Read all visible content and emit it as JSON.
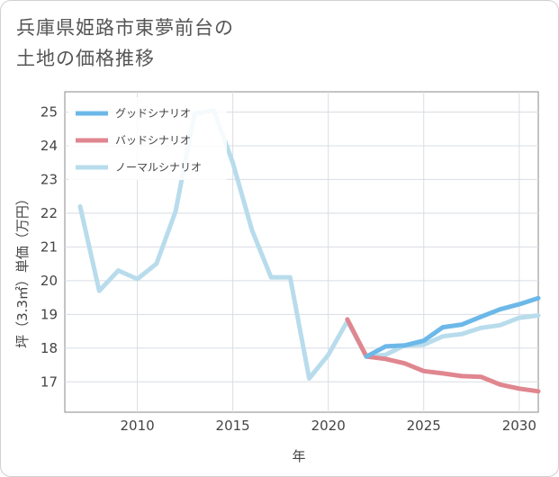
{
  "title_lines": [
    "兵庫県姫路市東夢前台の",
    "土地の価格推移"
  ],
  "chart_data": {
    "type": "line",
    "title": "兵庫県姫路市東夢前台の土地の価格推移",
    "xlabel": "年",
    "ylabel": "坪（3.3㎡）単価（万円）",
    "xlim": [
      2006.2,
      2031.0
    ],
    "ylim": [
      16.1,
      25.6
    ],
    "xticks": [
      2010,
      2015,
      2020,
      2025,
      2030
    ],
    "yticks": [
      17,
      18,
      19,
      20,
      21,
      22,
      23,
      24,
      25
    ],
    "legend_position": "top-left",
    "series": [
      {
        "name": "グッドシナリオ",
        "color": "#6cb8e8",
        "x": [
          2022,
          2023,
          2024,
          2025,
          2026,
          2027,
          2028,
          2029,
          2030,
          2031
        ],
        "y": [
          17.75,
          18.05,
          18.08,
          18.22,
          18.62,
          18.7,
          18.93,
          19.15,
          19.3,
          19.48
        ]
      },
      {
        "name": "バッドシナリオ",
        "color": "#e0868f",
        "x": [
          2021,
          2022,
          2023,
          2024,
          2025,
          2026,
          2027,
          2028,
          2029,
          2030,
          2031
        ],
        "y": [
          18.85,
          17.75,
          17.68,
          17.55,
          17.32,
          17.25,
          17.17,
          17.15,
          16.92,
          16.8,
          16.72
        ]
      },
      {
        "name": "ノーマルシナリオ",
        "color": "#b8dcec",
        "x": [
          2007,
          2008,
          2009,
          2010,
          2011,
          2012,
          2013,
          2014,
          2015,
          2016,
          2017,
          2018,
          2019,
          2020,
          2021,
          2022,
          2023,
          2024,
          2025,
          2026,
          2027,
          2028,
          2029,
          2030,
          2031
        ],
        "y": [
          22.2,
          19.7,
          20.3,
          20.05,
          20.5,
          22.05,
          24.95,
          25.05,
          23.5,
          21.5,
          20.1,
          20.1,
          17.1,
          17.8,
          18.8,
          17.75,
          17.8,
          18.08,
          18.1,
          18.35,
          18.42,
          18.6,
          18.68,
          18.9,
          18.97
        ]
      }
    ]
  }
}
